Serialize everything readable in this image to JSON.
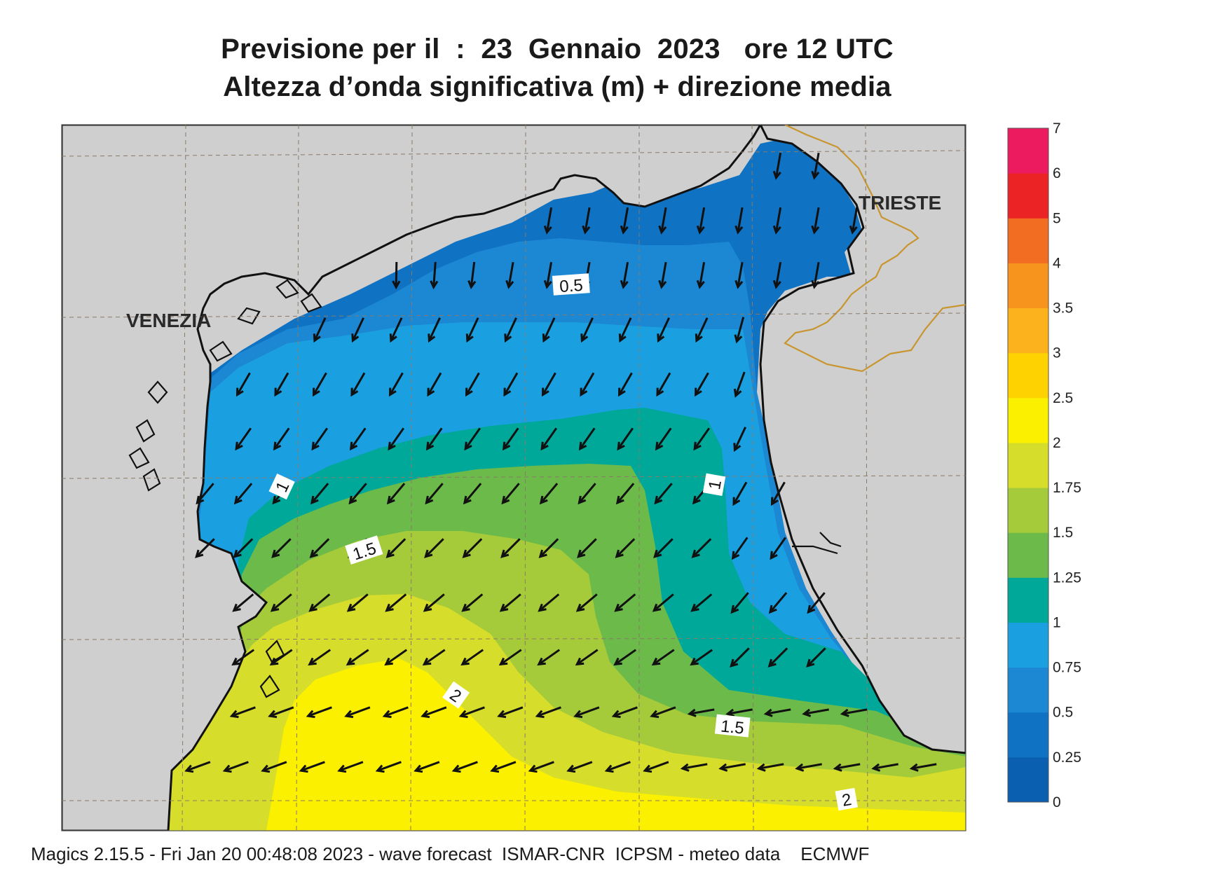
{
  "title": {
    "line1": "Previsione per il  :  23  Gennaio  2023   ore 12 UTC",
    "line2": "Altezza d’onda significativa (m) + direzione media"
  },
  "footer": "Magics 2.15.5 - Fri Jan 20 00:48:08 2023 - wave forecast  ISMAR-CNR  ICPSM - meteo data    ECMWF",
  "cities": [
    {
      "name": "VENEZIA"
    },
    {
      "name": "TRIESTE"
    }
  ],
  "contour_labels": [
    "0.5",
    "1",
    "1",
    "1.5",
    "2",
    "1.5",
    "2"
  ],
  "legend": {
    "levels": [
      "0",
      "0.25",
      "0.5",
      "0.75",
      "1",
      "1.25",
      "1.5",
      "1.75",
      "2",
      "2.5",
      "3",
      "3.5",
      "4",
      "5",
      "6",
      "7"
    ],
    "colors": [
      "#0a5fb0",
      "#0f72c2",
      "#1c87d3",
      "#1aa0e0",
      "#00a89a",
      "#6cbb4a",
      "#a6cb3a",
      "#d6dd2b",
      "#fbf000",
      "#fdd200",
      "#fbb21c",
      "#f7941d",
      "#f26d21",
      "#ec2325",
      "#ec1a5e"
    ]
  },
  "colors": {
    "land": "#cfcfcf",
    "coast": "#111111",
    "border": "#c8952e",
    "grid": "#8a7a68"
  },
  "wave_direction": "toward south-west (arrows)"
}
